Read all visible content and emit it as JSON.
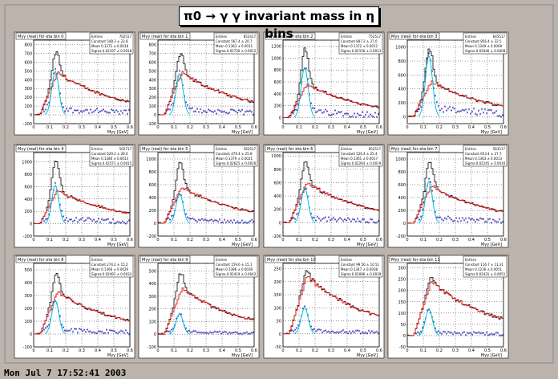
{
  "canvas_title": "π0 → γ γ invariant mass in η bins",
  "timestamp": "Mon Jul  7 17:52:41 2003",
  "colors": {
    "total": "#000000",
    "background": "#e01010",
    "signal": "#00c0e0",
    "subtracted": "#0000a0"
  },
  "chart_data": [
    {
      "type": "histogram",
      "title": "Mγγ (real) for eta bin 0",
      "stats": {
        "entries": "Entries",
        "entries_value": "702517",
        "constant": "Constant 548.3 ± 23.8",
        "mean": "Mean 0.1372 ± 0.0018",
        "sigma": "Sigma 0.02197 ± 0.0018"
      },
      "ylim": [
        -100,
        850
      ],
      "yticks": [
        -100,
        0,
        100,
        200,
        300,
        400,
        500,
        600,
        700,
        800
      ],
      "xlim": [
        0,
        0.6
      ],
      "xticks": [
        0,
        0.1,
        0.2,
        0.3,
        0.4,
        0.5,
        0.6
      ],
      "xlabel": "Mγγ [GeV]",
      "peak": {
        "total": 760,
        "bkg": 480,
        "sig": 490
      }
    },
    {
      "type": "histogram",
      "title": "Mγγ (real) for eta bin 1",
      "stats": {
        "entries": "Entries",
        "entries_value": "852417",
        "constant": "Constant 567.4 ± 20.7",
        "mean": "Mean 0.1363 ± 0.0011",
        "sigma": "Sigma 0.02730 ± 0.0012"
      },
      "ylim": [
        -100,
        850
      ],
      "yticks": [
        -100,
        0,
        100,
        200,
        300,
        400,
        500,
        600,
        700,
        800
      ],
      "xlim": [
        0,
        0.6
      ],
      "xticks": [
        0,
        0.1,
        0.2,
        0.3,
        0.4,
        0.5,
        0.6
      ],
      "xlabel": "Mγγ [GeV]",
      "peak": {
        "total": 740,
        "bkg": 480,
        "sig": 470
      }
    },
    {
      "type": "histogram",
      "title": "Mγγ (real) for eta bin 2",
      "stats": {
        "entries": "Entries",
        "entries_value": "752517",
        "constant": "Constant 847.2 ± 27.0",
        "mean": "Mean 0.1372 ± 0.0012",
        "sigma": "Sigma 0.02156 ± 0.0013"
      },
      "ylim": [
        -100,
        1300
      ],
      "yticks": [
        0,
        200,
        400,
        600,
        800,
        1000,
        1200
      ],
      "xlim": [
        0,
        0.6
      ],
      "xticks": [
        0,
        0.1,
        0.2,
        0.3,
        0.4,
        0.5,
        0.6
      ],
      "xlabel": "Mγγ [GeV]",
      "peak": {
        "total": 1220,
        "bkg": 560,
        "sig": 840
      }
    },
    {
      "type": "histogram",
      "title": "Mγγ (real) for eta bin 3",
      "stats": {
        "entries": "Entries",
        "entries_value": "645517",
        "constant": "Constant 856.4 ± 22.5",
        "mean": "Mean 0.1349 ± 0.0009",
        "sigma": "Sigma 0.02046 ± 0.0008"
      },
      "ylim": [
        -100,
        1100
      ],
      "yticks": [
        0,
        200,
        400,
        600,
        800,
        1000
      ],
      "xlim": [
        0,
        0.6
      ],
      "xticks": [
        0,
        0.1,
        0.2,
        0.3,
        0.4,
        0.5,
        0.6
      ],
      "xlabel": "Mγγ [GeV]",
      "peak": {
        "total": 1030,
        "bkg": 500,
        "sig": 870
      }
    },
    {
      "type": "histogram",
      "title": "Mγγ (real) for eta bin 4",
      "stats": {
        "entries": "Entries",
        "entries_value": "502717",
        "constant": "Constant 629.2 ± 28.0",
        "mean": "Mean 0.1380 ± 0.0013",
        "sigma": "Sigma 0.02571 ± 0.0015"
      },
      "ylim": [
        -200,
        1150
      ],
      "yticks": [
        -200,
        0,
        200,
        400,
        600,
        800,
        1000
      ],
      "xlim": [
        0,
        0.6
      ],
      "xticks": [
        0,
        0.1,
        0.2,
        0.3,
        0.4,
        0.5,
        0.6
      ],
      "xlabel": "Mγγ [GeV]",
      "peak": {
        "total": 1080,
        "bkg": 540,
        "sig": 620
      }
    },
    {
      "type": "histogram",
      "title": "Mγγ (real) for eta bin 5",
      "stats": {
        "entries": "Entries",
        "entries_value": "562517",
        "constant": "Constant 479.4 ± 25.8",
        "mean": "Mean 0.1379 ± 0.0021",
        "sigma": "Sigma 0.02625 ± 0.0026"
      },
      "ylim": [
        -200,
        1100
      ],
      "yticks": [
        -200,
        0,
        200,
        400,
        600,
        800,
        1000
      ],
      "xlim": [
        0,
        0.6
      ],
      "xticks": [
        0,
        0.1,
        0.2,
        0.3,
        0.4,
        0.5,
        0.6
      ],
      "xlabel": "Mγγ [GeV]",
      "peak": {
        "total": 1000,
        "bkg": 560,
        "sig": 460
      }
    },
    {
      "type": "histogram",
      "title": "Mγγ (real) for eta bin 6",
      "stats": {
        "entries": "Entries",
        "entries_value": "652517",
        "constant": "Constant 526.4 ± 25.4",
        "mean": "Mean 0.1361 ± 0.0017",
        "sigma": "Sigma 0.02264 ± 0.0019"
      },
      "ylim": [
        -200,
        1050
      ],
      "yticks": [
        -200,
        0,
        200,
        400,
        600,
        800,
        1000
      ],
      "xlim": [
        0,
        0.6
      ],
      "xticks": [
        0,
        0.1,
        0.2,
        0.3,
        0.4,
        0.5,
        0.6
      ],
      "xlabel": "Mγγ [GeV]",
      "peak": {
        "total": 960,
        "bkg": 600,
        "sig": 520
      }
    },
    {
      "type": "histogram",
      "title": "Mγγ (real) for eta bin 7",
      "stats": {
        "entries": "Entries",
        "entries_value": "563517",
        "constant": "Constant 653.4 ± 27.7",
        "mean": "Mean 0.1363 ± 0.0013",
        "sigma": "Sigma 0.02145 ± 0.0016"
      },
      "ylim": [
        -200,
        1100
      ],
      "yticks": [
        -200,
        0,
        200,
        400,
        600,
        800,
        1000
      ],
      "xlim": [
        0,
        0.6
      ],
      "xticks": [
        0,
        0.1,
        0.2,
        0.3,
        0.4,
        0.5,
        0.6
      ],
      "xlabel": "Mγγ [GeV]",
      "peak": {
        "total": 1020,
        "bkg": 580,
        "sig": 650
      }
    },
    {
      "type": "histogram",
      "title": "Mγγ (real) for eta bin 8",
      "stats": {
        "entries": "Entries",
        "entries_value": "",
        "constant": "Constant 274.2 ± 15.2",
        "mean": "Mean 0.1366 ± 0.0029",
        "sigma": "Sigma 0.02491 ± 0.0032"
      },
      "ylim": [
        -100,
        550
      ],
      "yticks": [
        -100,
        0,
        100,
        200,
        300,
        400,
        500
      ],
      "xlim": [
        0,
        0.6
      ],
      "xticks": [
        0,
        0.1,
        0.2,
        0.3,
        0.4,
        0.5,
        0.6
      ],
      "xlabel": "Mγγ [GeV]",
      "peak": {
        "total": 500,
        "bkg": 330,
        "sig": 260
      }
    },
    {
      "type": "histogram",
      "title": "Mγγ (real) for eta bin 9",
      "stats": {
        "entries": "Entries",
        "entries_value": "",
        "constant": "Constant 159.6 ± 15.1",
        "mean": "Mean 0.1386 ± 0.0036",
        "sigma": "Sigma 0.02419 ± 0.0042"
      },
      "ylim": [
        -100,
        560
      ],
      "yticks": [
        -100,
        0,
        100,
        200,
        300,
        400,
        500
      ],
      "xlim": [
        0,
        0.6
      ],
      "xticks": [
        0,
        0.1,
        0.2,
        0.3,
        0.4,
        0.5,
        0.6
      ],
      "xlabel": "Mγγ [GeV]",
      "peak": {
        "total": 520,
        "bkg": 360,
        "sig": 160
      }
    },
    {
      "type": "histogram",
      "title": "Mγγ (real) for eta bin 10",
      "stats": {
        "entries": "Entries",
        "entries_value": "",
        "constant": "Constant 99.56 ± 10.51",
        "mean": "Mean 0.1347 ± 0.0038",
        "sigma": "Sigma 0.02086 ± 0.0039"
      },
      "ylim": [
        -50,
        270
      ],
      "yticks": [
        -50,
        0,
        50,
        100,
        150,
        200,
        250
      ],
      "xlim": [
        0,
        0.6
      ],
      "xticks": [
        0,
        0.1,
        0.2,
        0.3,
        0.4,
        0.5,
        0.6
      ],
      "xlabel": "Mγγ [GeV]",
      "peak": {
        "total": 250,
        "bkg": 220,
        "sig": 100
      }
    },
    {
      "type": "histogram",
      "title": "Mγγ (real) for eta bin 11",
      "stats": {
        "entries": "Entries",
        "entries_value": "",
        "constant": "Constant 116.7 ± 11.31",
        "mean": "Mean 0.1236 ± 0.0051",
        "sigma": "Sigma 0.02431 ± 0.0051"
      },
      "ylim": [
        -50,
        320
      ],
      "yticks": [
        -50,
        0,
        50,
        100,
        150,
        200,
        250,
        300
      ],
      "xlim": [
        0,
        0.6
      ],
      "xticks": [
        0,
        0.1,
        0.2,
        0.3,
        0.4,
        0.5,
        0.6
      ],
      "xlabel": "Mγγ [GeV]",
      "peak": {
        "total": 270,
        "bkg": 240,
        "sig": 115
      }
    }
  ]
}
